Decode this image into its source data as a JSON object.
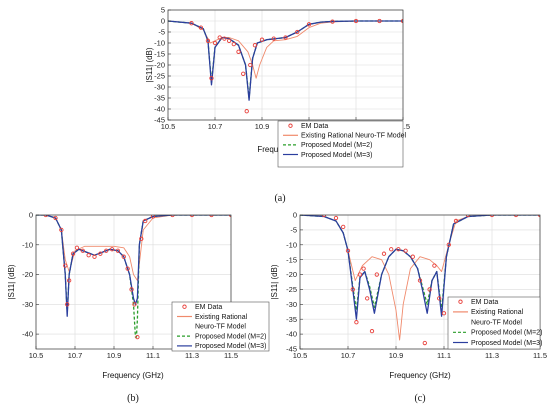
{
  "chart_data": [
    {
      "panel": "a",
      "type": "line",
      "caption": "(a)",
      "xlabel": "Frequency (GHz)",
      "ylabel": "|S11| (dB)",
      "xlim": [
        10.5,
        11.5
      ],
      "ylim": [
        -45,
        5
      ],
      "xticks": [
        10.5,
        10.7,
        10.9,
        11.1,
        11.3,
        11.5
      ],
      "xticklabels": [
        "10.5",
        "10.7",
        "10.9",
        "11.1",
        "11.3",
        "11.5"
      ],
      "yticks": [
        5,
        0,
        -5,
        -10,
        -15,
        -20,
        -25,
        -30,
        -35,
        -40,
        -45
      ],
      "yticklabels": [
        "5",
        "0",
        "-5",
        "-10",
        "-15",
        "-20",
        "-25",
        "-30",
        "-35",
        "-40",
        "-45"
      ],
      "grid": true,
      "legend_position": "bottom-right",
      "legend": [
        "EM Data",
        "Existing Rational Neuro-TF Model",
        "Proposed Model (M=2)",
        "Proposed Model (M=3)"
      ],
      "series": [
        {
          "name": "EM Data",
          "style": "marker",
          "color": "#e8403b",
          "x": [
            10.6,
            10.64,
            10.67,
            10.685,
            10.7,
            10.72,
            10.74,
            10.76,
            10.78,
            10.8,
            10.82,
            10.835,
            10.85,
            10.87,
            10.9,
            10.95,
            11.0,
            11.05,
            11.1,
            11.2,
            11.3,
            11.4,
            11.5
          ],
          "y": [
            -1,
            -3,
            -9,
            -26,
            -10,
            -7.5,
            -8,
            -9,
            -10.5,
            -14,
            -24,
            -41,
            -20,
            -11,
            -8.5,
            -8,
            -7.5,
            -5,
            -1.5,
            -0.3,
            0,
            0,
            0
          ]
        },
        {
          "name": "Existing Rational Neuro-TF Model",
          "style": "solid",
          "color": "#f08a6c",
          "x": [
            10.5,
            10.6,
            10.65,
            10.68,
            10.7,
            10.73,
            10.76,
            10.8,
            10.84,
            10.86,
            10.875,
            10.89,
            10.92,
            10.95,
            11.0,
            11.05,
            11.1,
            11.15,
            11.2,
            11.3,
            11.5
          ],
          "y": [
            0,
            -1,
            -4,
            -10,
            -9,
            -7.5,
            -7.5,
            -9,
            -14,
            -20,
            -26,
            -20,
            -12,
            -9,
            -8.5,
            -7,
            -3,
            -1,
            -0.4,
            0,
            0
          ]
        },
        {
          "name": "Proposed Model (M=2)",
          "style": "dashed",
          "color": "#2a9d2a",
          "x": [
            10.5,
            10.6,
            10.65,
            10.67,
            10.685,
            10.7,
            10.73,
            10.76,
            10.8,
            10.83,
            10.845,
            10.86,
            10.88,
            10.92,
            10.96,
            11.0,
            11.05,
            11.1,
            11.15,
            11.2,
            11.3,
            11.5
          ],
          "y": [
            0,
            -1,
            -3.5,
            -9,
            -28,
            -12,
            -7.5,
            -8,
            -11,
            -20,
            -35,
            -17,
            -10,
            -8.5,
            -8,
            -7.5,
            -5,
            -1.5,
            -0.5,
            -0.2,
            0,
            0
          ]
        },
        {
          "name": "Proposed Model (M=3)",
          "style": "solid",
          "color": "#2b3e9e",
          "x": [
            10.5,
            10.6,
            10.65,
            10.67,
            10.685,
            10.7,
            10.73,
            10.76,
            10.8,
            10.83,
            10.845,
            10.86,
            10.88,
            10.92,
            10.96,
            11.0,
            11.05,
            11.1,
            11.15,
            11.2,
            11.3,
            11.5
          ],
          "y": [
            0,
            -1,
            -3.5,
            -9,
            -29,
            -12,
            -7.5,
            -8,
            -11,
            -20,
            -36,
            -17,
            -10,
            -8.5,
            -8,
            -7.5,
            -5,
            -1.5,
            -0.5,
            -0.2,
            0,
            0
          ]
        }
      ]
    },
    {
      "panel": "b",
      "type": "line",
      "caption": "(b)",
      "xlabel": "Frequency (GHz)",
      "ylabel": "|S11| (dB)",
      "xlim": [
        10.5,
        11.5
      ],
      "ylim": [
        -45,
        0
      ],
      "xticks": [
        10.5,
        10.7,
        10.9,
        11.1,
        11.3,
        11.5
      ],
      "xticklabels": [
        "10.5",
        "10.7",
        "10.9",
        "11.1",
        "11.3",
        "11.5"
      ],
      "yticks": [
        0,
        -10,
        -20,
        -30,
        -40
      ],
      "yticklabels": [
        "0",
        "-10",
        "-20",
        "-30",
        "-40"
      ],
      "grid": true,
      "legend_position": "bottom-right",
      "legend": [
        "EM Data",
        "Existing Rational",
        "Neuro-TF Model",
        "Proposed Model (M=2)",
        "Proposed Model (M=3)"
      ],
      "series": [
        {
          "name": "EM Data",
          "style": "marker",
          "color": "#e8403b",
          "x": [
            10.55,
            10.6,
            10.63,
            10.65,
            10.66,
            10.67,
            10.69,
            10.71,
            10.74,
            10.77,
            10.8,
            10.83,
            10.86,
            10.89,
            10.92,
            10.95,
            10.97,
            10.99,
            11.005,
            11.02,
            11.04,
            11.06,
            11.1,
            11.2,
            11.3,
            11.4,
            11.5
          ],
          "y": [
            0,
            -1,
            -5,
            -17,
            -30,
            -22,
            -13,
            -11,
            -12,
            -13.5,
            -14,
            -13,
            -12,
            -11.5,
            -12,
            -14,
            -18,
            -25,
            -30,
            -41,
            -8,
            -2,
            -0.5,
            0,
            0,
            0,
            0
          ]
        },
        {
          "name": "Existing Rational Neuro-TF Model",
          "style": "solid",
          "color": "#f08a6c",
          "x": [
            10.5,
            10.55,
            10.6,
            10.63,
            10.65,
            10.67,
            10.7,
            10.75,
            10.8,
            10.85,
            10.9,
            10.95,
            10.98,
            11.0,
            11.02,
            11.05,
            11.1,
            11.2,
            11.5
          ],
          "y": [
            0,
            0,
            -1,
            -5,
            -15,
            -19,
            -12,
            -10.5,
            -10.5,
            -10.5,
            -10.5,
            -11,
            -14,
            -20,
            -22,
            -5,
            -1,
            0,
            0
          ]
        },
        {
          "name": "Proposed Model (M=2)",
          "style": "dashed",
          "color": "#2a9d2a",
          "x": [
            10.5,
            10.55,
            10.6,
            10.63,
            10.65,
            10.66,
            10.67,
            10.69,
            10.72,
            10.76,
            10.8,
            10.84,
            10.88,
            10.92,
            10.95,
            10.98,
            11.0,
            11.01,
            11.015,
            11.02,
            11.03,
            11.05,
            11.1,
            11.2,
            11.5
          ],
          "y": [
            0,
            0,
            -1,
            -5,
            -20,
            -33,
            -20,
            -13,
            -11.5,
            -12.5,
            -13.5,
            -12.5,
            -11.5,
            -12,
            -14,
            -20,
            -30,
            -41,
            -41,
            -35,
            -10,
            -2,
            -0.5,
            0,
            0
          ]
        },
        {
          "name": "Proposed Model (M=3)",
          "style": "solid",
          "color": "#2b3e9e",
          "x": [
            10.5,
            10.55,
            10.6,
            10.63,
            10.65,
            10.66,
            10.67,
            10.69,
            10.72,
            10.76,
            10.8,
            10.84,
            10.88,
            10.92,
            10.95,
            10.98,
            11.0,
            11.01,
            11.02,
            11.03,
            11.05,
            11.1,
            11.2,
            11.5
          ],
          "y": [
            0,
            0,
            -1,
            -5,
            -20,
            -34,
            -20,
            -13,
            -11.5,
            -12.5,
            -13.5,
            -12.5,
            -11.5,
            -12,
            -14,
            -20,
            -28,
            -30,
            -28,
            -10,
            -2,
            -0.5,
            0,
            0
          ]
        }
      ]
    },
    {
      "panel": "c",
      "type": "line",
      "caption": "(c)",
      "xlabel": "Frequency (GHz)",
      "ylabel": "|S11| (dB)",
      "xlim": [
        10.5,
        11.5
      ],
      "ylim": [
        -45,
        0
      ],
      "xticks": [
        10.5,
        10.7,
        10.9,
        11.1,
        11.3,
        11.5
      ],
      "xticklabels": [
        "10.5",
        "10.7",
        "10.9",
        "11.1",
        "11.3",
        "11.5"
      ],
      "yticks": [
        0,
        -5,
        -10,
        -15,
        -20,
        -25,
        -30,
        -35,
        -40,
        -45
      ],
      "yticklabels": [
        "0",
        "-5",
        "-10",
        "-15",
        "-20",
        "-25",
        "-30",
        "-35",
        "-40",
        "-45"
      ],
      "grid": true,
      "legend_position": "bottom-right",
      "legend": [
        "EM Data",
        "Existing Rational",
        "Neuro-TF Model",
        "Proposed Model (M=2)",
        "Proposed Model (M=3)"
      ],
      "series": [
        {
          "name": "EM Data",
          "style": "marker",
          "color": "#e8403b",
          "x": [
            10.6,
            10.65,
            10.68,
            10.7,
            10.72,
            10.735,
            10.75,
            10.765,
            10.78,
            10.8,
            10.82,
            10.85,
            10.88,
            10.91,
            10.94,
            10.97,
            11.0,
            11.02,
            11.04,
            11.06,
            11.08,
            11.1,
            11.12,
            11.15,
            11.2,
            11.3,
            11.4,
            11.5
          ],
          "y": [
            0,
            -1,
            -4,
            -12,
            -25,
            -36,
            -20,
            -18,
            -28,
            -39,
            -20,
            -13,
            -11.5,
            -11.5,
            -12,
            -14,
            -22,
            -43,
            -25,
            -17,
            -28,
            -33,
            -10,
            -2,
            0,
            0,
            0,
            0
          ]
        },
        {
          "name": "Existing Rational Neuro-TF Model",
          "style": "solid",
          "color": "#f08a6c",
          "x": [
            10.5,
            10.6,
            10.65,
            10.68,
            10.7,
            10.73,
            10.76,
            10.8,
            10.84,
            10.87,
            10.9,
            10.915,
            10.93,
            10.96,
            11.0,
            11.04,
            11.07,
            11.09,
            11.12,
            11.15,
            11.2,
            11.3,
            11.5
          ],
          "y": [
            0,
            -0.5,
            -2,
            -6,
            -12,
            -22,
            -17,
            -14,
            -15,
            -20,
            -32,
            -42,
            -30,
            -18,
            -14,
            -15,
            -17,
            -19,
            -10,
            -2,
            -0.5,
            0,
            0
          ]
        },
        {
          "name": "Proposed Model (M=2)",
          "style": "dashed",
          "color": "#2a9d2a",
          "x": [
            10.5,
            10.6,
            10.65,
            10.68,
            10.7,
            10.72,
            10.735,
            10.75,
            10.77,
            10.79,
            10.81,
            10.84,
            10.87,
            10.9,
            10.93,
            10.96,
            10.99,
            11.01,
            11.03,
            11.05,
            11.07,
            11.09,
            11.11,
            11.14,
            11.2,
            11.3,
            11.5
          ],
          "y": [
            0,
            -0.5,
            -2,
            -6,
            -12,
            -24,
            -32,
            -21,
            -19,
            -24,
            -31,
            -20,
            -14,
            -11.5,
            -12,
            -14,
            -18,
            -24,
            -30,
            -22,
            -19,
            -32,
            -14,
            -3,
            -0.5,
            0,
            0
          ]
        },
        {
          "name": "Proposed Model (M=3)",
          "style": "solid",
          "color": "#2b3e9e",
          "x": [
            10.5,
            10.6,
            10.65,
            10.68,
            10.7,
            10.72,
            10.735,
            10.75,
            10.77,
            10.79,
            10.81,
            10.84,
            10.87,
            10.9,
            10.93,
            10.96,
            10.99,
            11.01,
            11.03,
            11.05,
            11.07,
            11.09,
            11.11,
            11.14,
            11.2,
            11.3,
            11.5
          ],
          "y": [
            0,
            -0.5,
            -2,
            -6,
            -12,
            -25,
            -35,
            -21,
            -19,
            -25,
            -33,
            -20,
            -14,
            -11.5,
            -12,
            -14,
            -18,
            -25,
            -33,
            -22,
            -19,
            -34,
            -14,
            -3,
            -0.5,
            0,
            0
          ]
        }
      ]
    }
  ]
}
